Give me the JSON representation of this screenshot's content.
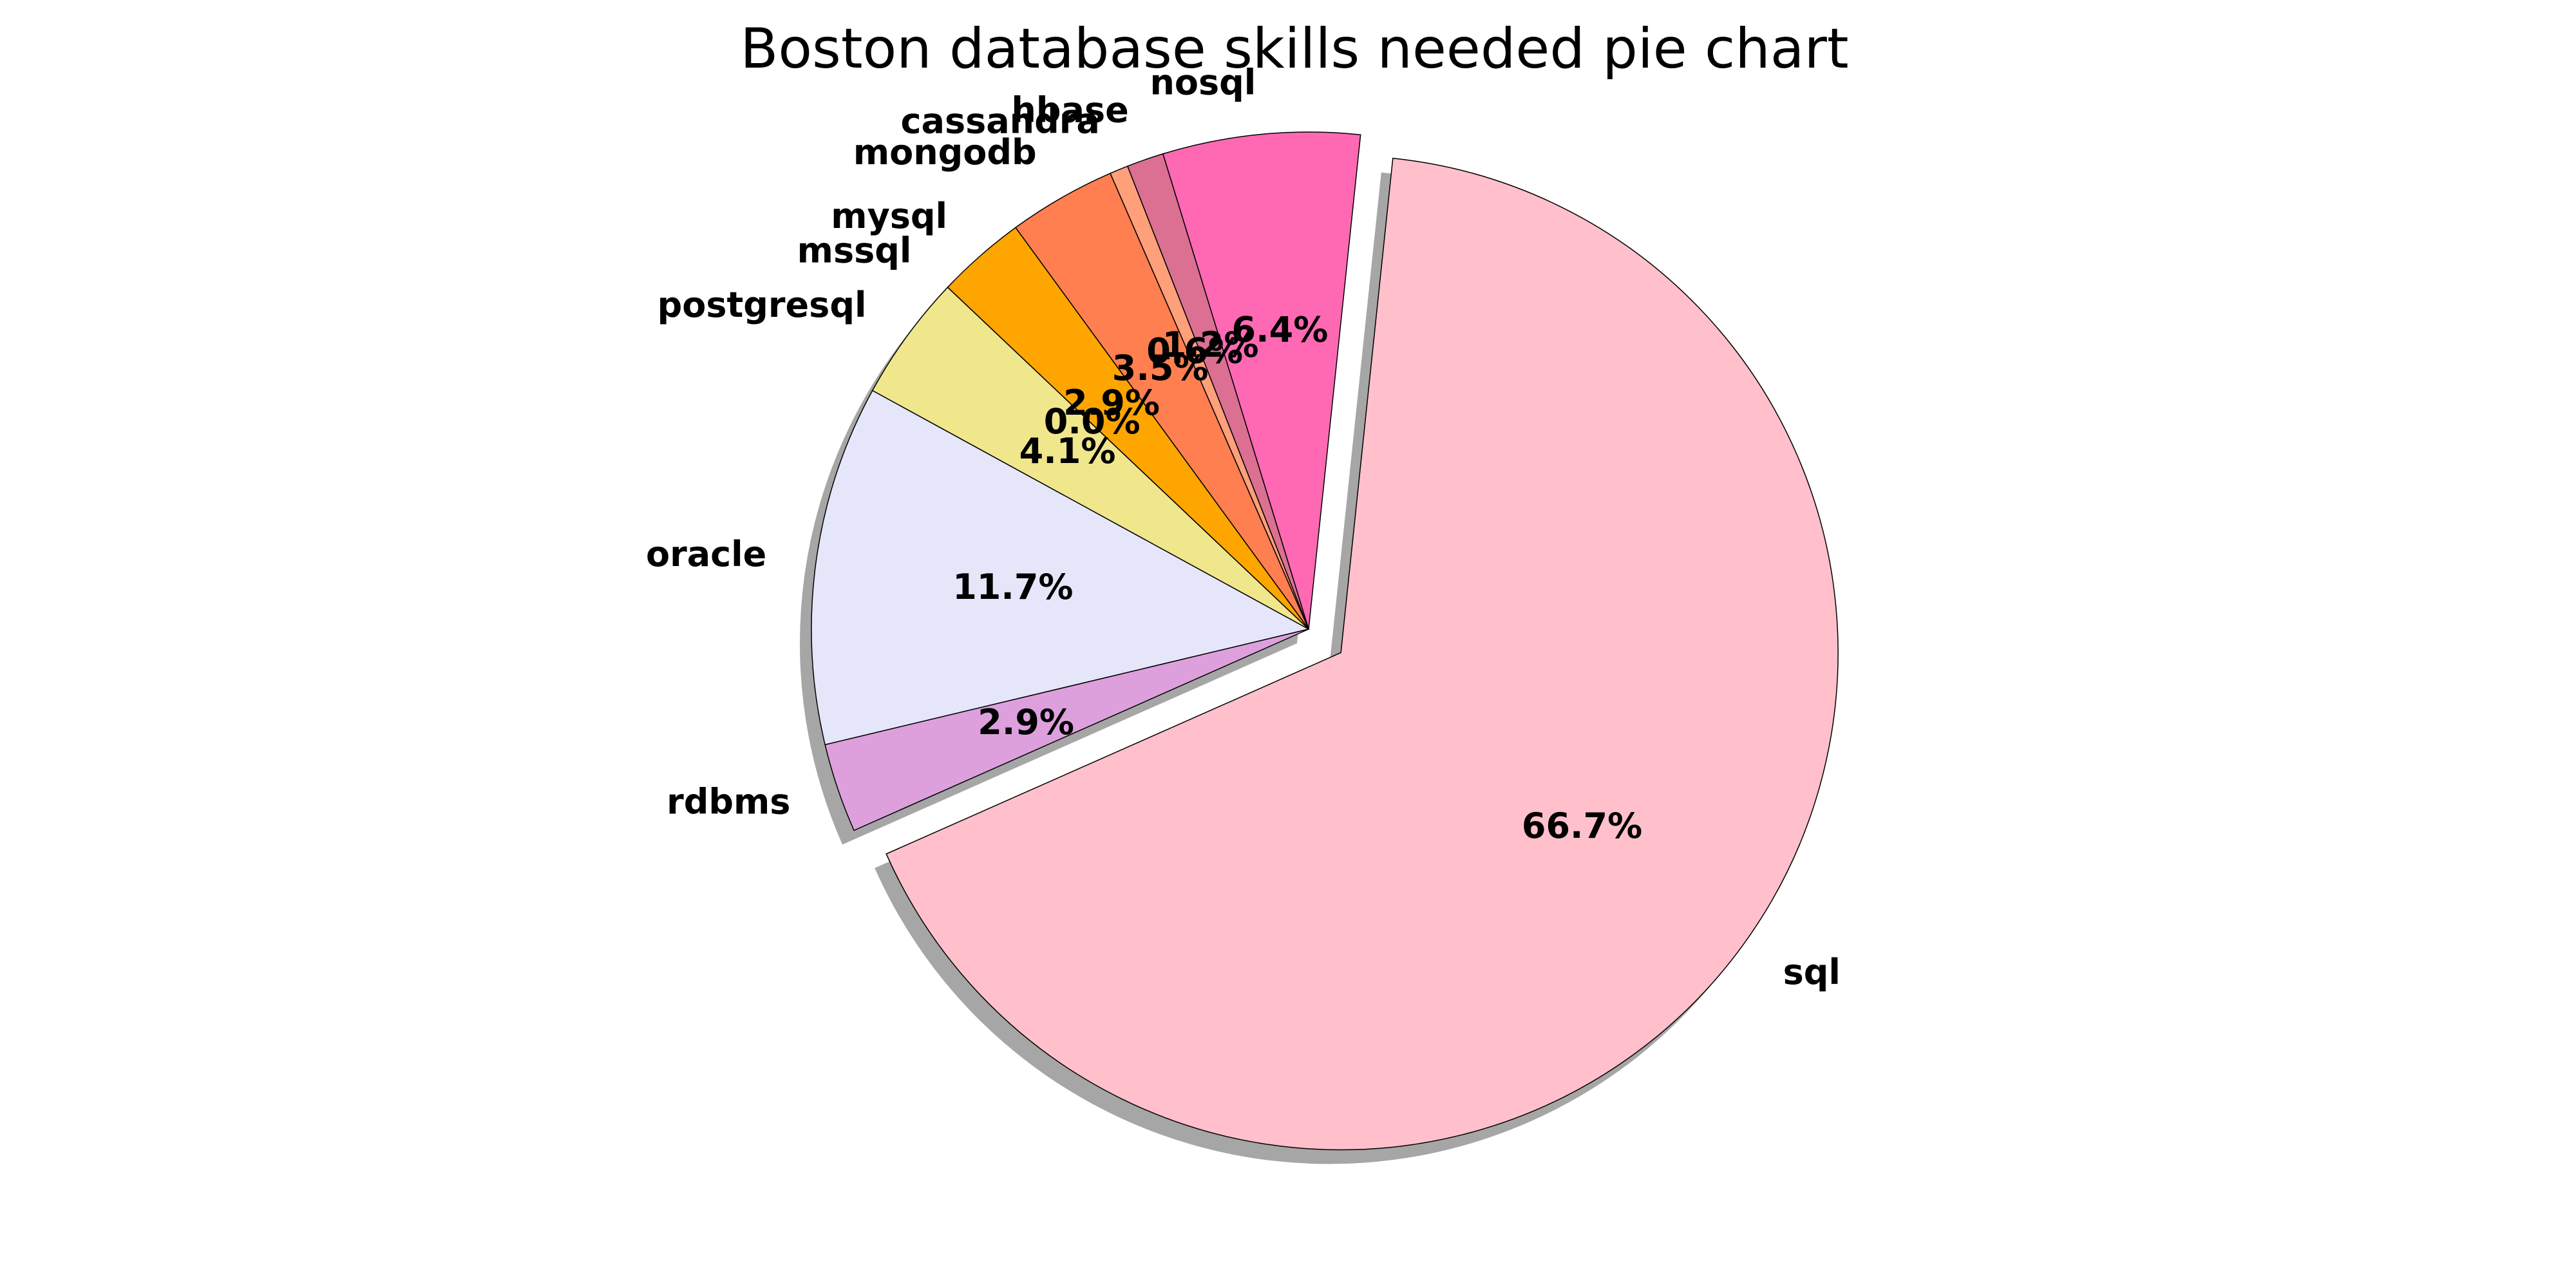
{
  "chart_data": {
    "type": "pie",
    "title": "Boston database skills needed pie chart",
    "start_angle_deg": 84,
    "direction": "counterclockwise",
    "shadow": true,
    "slices": [
      {
        "label": "nosql",
        "value": 6.4,
        "pct_label": "6.4%",
        "color": "#ff69b4",
        "explode": false
      },
      {
        "label": "hbase",
        "value": 1.2,
        "pct_label": "1.2%",
        "color": "#db7093",
        "explode": false
      },
      {
        "label": "cassandra",
        "value": 0.6,
        "pct_label": "0.6%",
        "color": "#ffa07a",
        "explode": false
      },
      {
        "label": "mongodb",
        "value": 3.5,
        "pct_label": "3.5%",
        "color": "#ff7f50",
        "explode": false
      },
      {
        "label": "mysql",
        "value": 2.9,
        "pct_label": "2.9%",
        "color": "#ffa500",
        "explode": false
      },
      {
        "label": "mssql",
        "value": 0.0,
        "pct_label": "0.0%",
        "color": "#ffd700",
        "explode": false
      },
      {
        "label": "postgresql",
        "value": 4.1,
        "pct_label": "4.1%",
        "color": "#f0e68c",
        "explode": false
      },
      {
        "label": "oracle",
        "value": 11.7,
        "pct_label": "11.7%",
        "color": "#e6e6fa",
        "explode": false
      },
      {
        "label": "rdbms",
        "value": 2.9,
        "pct_label": "2.9%",
        "color": "#dda0dd",
        "explode": false
      },
      {
        "label": "sql",
        "value": 66.7,
        "pct_label": "66.7%",
        "color": "#ffc0cb",
        "explode": true
      }
    ]
  }
}
